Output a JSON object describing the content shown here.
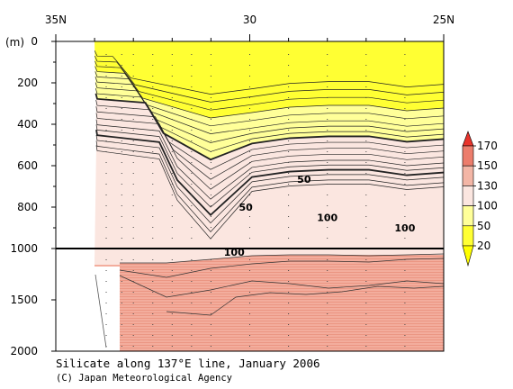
{
  "chart_data": {
    "type": "contour",
    "caption": "Silicate along 137°E line, January 2006",
    "credit": "(C) Japan Meteorological Agency",
    "ylabel": "(m)",
    "x_ticks": [
      "35N",
      "30",
      "25N"
    ],
    "x_tick_values": [
      35,
      30,
      25
    ],
    "xlim": [
      35,
      25
    ],
    "y_ticks_upper": [
      0,
      200,
      400,
      600,
      800,
      1000
    ],
    "y_ticks_lower": [
      1500,
      2000
    ],
    "y_break": 1000,
    "ylim": [
      0,
      2000
    ],
    "colorbar": {
      "levels": [
        20,
        50,
        100,
        130,
        150,
        170
      ],
      "labels": [
        "170",
        "150",
        "130",
        "100",
        "50",
        "20"
      ],
      "colors": [
        "#ffff33",
        "#ffff99",
        "#fbe6e0",
        "#f3b6a6",
        "#ec7d6c"
      ],
      "top_color": "#e8332b",
      "bottom_color": "#ffff00"
    },
    "contour_labels": [
      {
        "text": "50",
        "lat": 30.1,
        "depth": 805
      },
      {
        "text": "50",
        "lat": 28.6,
        "depth": 670
      },
      {
        "text": "100",
        "lat": 28.0,
        "depth": 855
      },
      {
        "text": "100",
        "lat": 30.4,
        "depth": 1045
      },
      {
        "text": "100",
        "lat": 26.0,
        "depth": 905
      }
    ],
    "station_lats": [
      33.7,
      33.3,
      33.0,
      32.5,
      32.0,
      31.5,
      31.0,
      30.0,
      29.0,
      28.0,
      27.0,
      26.0,
      25.0
    ],
    "contour_levels": [
      5,
      10,
      15,
      20,
      25,
      30,
      35,
      40,
      50,
      60,
      70,
      80,
      90,
      100,
      110,
      130,
      150
    ]
  }
}
